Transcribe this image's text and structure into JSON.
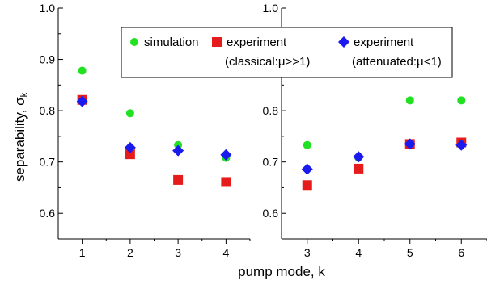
{
  "chart_data": {
    "type": "scatter",
    "xlabel": "pump mode, k",
    "ylabel": "separability, σ",
    "ylabel_sub": "k",
    "ylim": [
      0.55,
      1.0
    ],
    "yticks": [
      "0.6",
      "0.7",
      "0.8",
      "0.9",
      "1.0"
    ],
    "grid": false,
    "legend_position": "top",
    "legend": [
      {
        "key": "simulation",
        "marker": "circle",
        "color": "#22e022",
        "line1": "simulation",
        "line2": ""
      },
      {
        "key": "classical",
        "marker": "square",
        "color": "#e61c1c",
        "line1": "experiment",
        "line2": "(classical:μ>>1)"
      },
      {
        "key": "attenuated",
        "marker": "diamond",
        "color": "#1a1aee",
        "line1": "experiment",
        "line2": "(attenuated:μ<1)"
      }
    ],
    "panels": [
      {
        "name": "left",
        "xticks": [
          "1",
          "2",
          "3",
          "4"
        ],
        "x": [
          1,
          2,
          3,
          4
        ],
        "series": {
          "simulation": [
            0.878,
            0.795,
            0.733,
            0.708
          ],
          "classical": [
            0.821,
            0.715,
            0.665,
            0.661
          ],
          "attenuated": [
            0.818,
            0.728,
            0.722,
            0.714
          ]
        }
      },
      {
        "name": "right",
        "xticks": [
          "3",
          "4",
          "5",
          "6"
        ],
        "x": [
          3,
          4,
          5,
          6
        ],
        "series": {
          "simulation": [
            0.733,
            0.708,
            0.82,
            0.82
          ],
          "classical": [
            0.655,
            0.687,
            0.735,
            0.738
          ],
          "attenuated": [
            0.686,
            0.71,
            0.735,
            0.733
          ]
        }
      }
    ]
  }
}
